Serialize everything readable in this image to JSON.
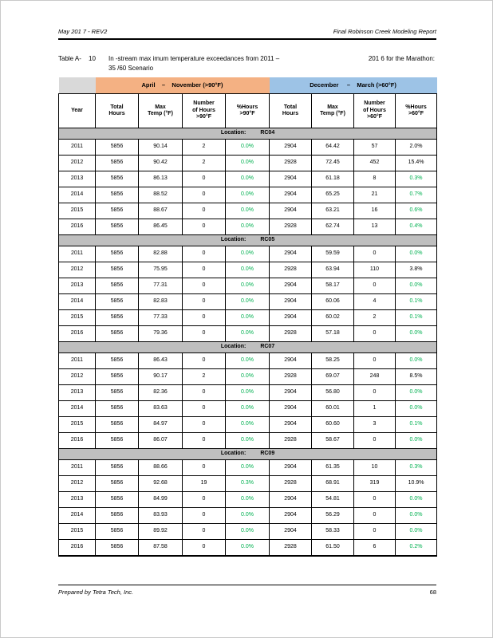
{
  "page": {
    "header": {
      "left": "May 201 7 - REV2",
      "right": "Final Robinson Creek Modeling Report"
    },
    "footer": {
      "left": "Prepared by Tetra Tech, Inc.",
      "page_number": "68"
    },
    "caption": {
      "label": "Table A-",
      "number": "10",
      "text": "In -stream max imum temperature exceedances from 2011 –",
      "right_text": "201 6 for the Marathon:",
      "line2": "35 /60 Scenario"
    }
  },
  "colors": {
    "orange": "#F4B183",
    "blue": "#9DC3E6",
    "band_gray": "#D9D9D9",
    "location_gray": "#BFBFBF",
    "green": "#00B050"
  },
  "table": {
    "bands": [
      {
        "label": "April    –    November (>90°F)"
      },
      {
        "label": "December     –    March (>60°F)"
      }
    ],
    "columns": [
      "Year",
      "Total\nHours",
      "Max\nTemp (°F)",
      "Number\nof Hours\n>90°F",
      "%Hours\n>90°F",
      "Total\nHours",
      "Max\nTemp (°F)",
      "Number\nof Hours\n>60°F",
      "%Hours\n>60°F"
    ],
    "location_label": "Location:",
    "sections": [
      {
        "location": "RC04",
        "rows": [
          {
            "year": "2011",
            "apr": [
              "5856",
              "90.14",
              "2",
              "0.0%"
            ],
            "apr_green": true,
            "dec": [
              "2904",
              "64.42",
              "57",
              "2.0%"
            ],
            "dec_green": false
          },
          {
            "year": "2012",
            "apr": [
              "5856",
              "90.42",
              "2",
              "0.0%"
            ],
            "apr_green": true,
            "dec": [
              "2928",
              "72.45",
              "452",
              "15.4%"
            ],
            "dec_green": false
          },
          {
            "year": "2013",
            "apr": [
              "5856",
              "86.13",
              "0",
              "0.0%"
            ],
            "apr_green": true,
            "dec": [
              "2904",
              "61.18",
              "8",
              "0.3%"
            ],
            "dec_green": true
          },
          {
            "year": "2014",
            "apr": [
              "5856",
              "88.52",
              "0",
              "0.0%"
            ],
            "apr_green": true,
            "dec": [
              "2904",
              "65.25",
              "21",
              "0.7%"
            ],
            "dec_green": true
          },
          {
            "year": "2015",
            "apr": [
              "5856",
              "88.67",
              "0",
              "0.0%"
            ],
            "apr_green": true,
            "dec": [
              "2904",
              "63.21",
              "16",
              "0.6%"
            ],
            "dec_green": true
          },
          {
            "year": "2016",
            "apr": [
              "5856",
              "86.45",
              "0",
              "0.0%"
            ],
            "apr_green": true,
            "dec": [
              "2928",
              "62.74",
              "13",
              "0.4%"
            ],
            "dec_green": true
          }
        ]
      },
      {
        "location": "RC05",
        "rows": [
          {
            "year": "2011",
            "apr": [
              "5856",
              "82.88",
              "0",
              "0.0%"
            ],
            "apr_green": true,
            "dec": [
              "2904",
              "59.59",
              "0",
              "0.0%"
            ],
            "dec_green": true
          },
          {
            "year": "2012",
            "apr": [
              "5856",
              "75.95",
              "0",
              "0.0%"
            ],
            "apr_green": true,
            "dec": [
              "2928",
              "63.94",
              "110",
              "3.8%"
            ],
            "dec_green": false
          },
          {
            "year": "2013",
            "apr": [
              "5856",
              "77.31",
              "0",
              "0.0%"
            ],
            "apr_green": true,
            "dec": [
              "2904",
              "58.17",
              "0",
              "0.0%"
            ],
            "dec_green": true
          },
          {
            "year": "2014",
            "apr": [
              "5856",
              "82.83",
              "0",
              "0.0%"
            ],
            "apr_green": true,
            "dec": [
              "2904",
              "60.06",
              "4",
              "0.1%"
            ],
            "dec_green": true
          },
          {
            "year": "2015",
            "apr": [
              "5856",
              "77.33",
              "0",
              "0.0%"
            ],
            "apr_green": true,
            "dec": [
              "2904",
              "60.02",
              "2",
              "0.1%"
            ],
            "dec_green": true
          },
          {
            "year": "2016",
            "apr": [
              "5856",
              "79.36",
              "0",
              "0.0%"
            ],
            "apr_green": true,
            "dec": [
              "2928",
              "57.18",
              "0",
              "0.0%"
            ],
            "dec_green": true
          }
        ]
      },
      {
        "location": "RC07",
        "rows": [
          {
            "year": "2011",
            "apr": [
              "5856",
              "86.43",
              "0",
              "0.0%"
            ],
            "apr_green": true,
            "dec": [
              "2904",
              "58.25",
              "0",
              "0.0%"
            ],
            "dec_green": true
          },
          {
            "year": "2012",
            "apr": [
              "5856",
              "90.17",
              "2",
              "0.0%"
            ],
            "apr_green": true,
            "dec": [
              "2928",
              "69.07",
              "248",
              "8.5%"
            ],
            "dec_green": false
          },
          {
            "year": "2013",
            "apr": [
              "5856",
              "82.36",
              "0",
              "0.0%"
            ],
            "apr_green": true,
            "dec": [
              "2904",
              "56.80",
              "0",
              "0.0%"
            ],
            "dec_green": true
          },
          {
            "year": "2014",
            "apr": [
              "5856",
              "83.63",
              "0",
              "0.0%"
            ],
            "apr_green": true,
            "dec": [
              "2904",
              "60.01",
              "1",
              "0.0%"
            ],
            "dec_green": true
          },
          {
            "year": "2015",
            "apr": [
              "5856",
              "84.97",
              "0",
              "0.0%"
            ],
            "apr_green": true,
            "dec": [
              "2904",
              "60.60",
              "3",
              "0.1%"
            ],
            "dec_green": true
          },
          {
            "year": "2016",
            "apr": [
              "5856",
              "86.07",
              "0",
              "0.0%"
            ],
            "apr_green": true,
            "dec": [
              "2928",
              "58.67",
              "0",
              "0.0%"
            ],
            "dec_green": true
          }
        ]
      },
      {
        "location": "RC09",
        "rows": [
          {
            "year": "2011",
            "apr": [
              "5856",
              "88.66",
              "0",
              "0.0%"
            ],
            "apr_green": true,
            "dec": [
              "2904",
              "61.35",
              "10",
              "0.3%"
            ],
            "dec_green": true
          },
          {
            "year": "2012",
            "apr": [
              "5856",
              "92.68",
              "19",
              "0.3%"
            ],
            "apr_green": true,
            "dec": [
              "2928",
              "68.91",
              "319",
              "10.9%"
            ],
            "dec_green": false
          },
          {
            "year": "2013",
            "apr": [
              "5856",
              "84.99",
              "0",
              "0.0%"
            ],
            "apr_green": true,
            "dec": [
              "2904",
              "54.81",
              "0",
              "0.0%"
            ],
            "dec_green": true
          },
          {
            "year": "2014",
            "apr": [
              "5856",
              "83.93",
              "0",
              "0.0%"
            ],
            "apr_green": true,
            "dec": [
              "2904",
              "56.29",
              "0",
              "0.0%"
            ],
            "dec_green": true
          },
          {
            "year": "2015",
            "apr": [
              "5856",
              "89.92",
              "0",
              "0.0%"
            ],
            "apr_green": true,
            "dec": [
              "2904",
              "58.33",
              "0",
              "0.0%"
            ],
            "dec_green": true
          },
          {
            "year": "2016",
            "apr": [
              "5856",
              "87.58",
              "0",
              "0.0%"
            ],
            "apr_green": true,
            "dec": [
              "2928",
              "61.50",
              "6",
              "0.2%"
            ],
            "dec_green": true
          }
        ]
      }
    ]
  }
}
